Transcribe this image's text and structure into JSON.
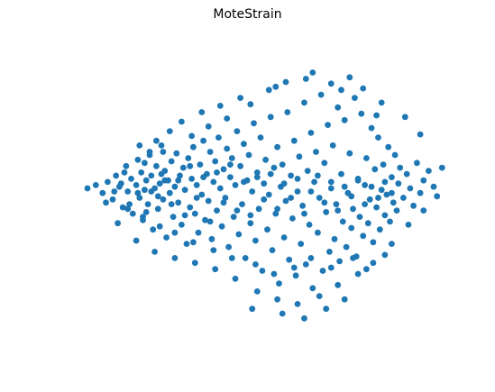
{
  "chart_data": {
    "type": "scatter",
    "title": "MoteStrain",
    "xlabel": "",
    "ylabel": "",
    "axes_visible": false,
    "grid": false,
    "legend": "none",
    "xlim": [
      -1.25,
      1.25
    ],
    "ylim": [
      -1.0,
      1.0
    ],
    "marker_color": "#1f77b4",
    "series": [
      {
        "points": [
          [
            -1.03,
            0.04
          ],
          [
            -0.98,
            0.06
          ],
          [
            -0.94,
            0.01
          ],
          [
            -0.91,
            0.08
          ],
          [
            -0.88,
            -0.03
          ],
          [
            -0.86,
            0.12
          ],
          [
            -0.84,
            0.05
          ],
          [
            -0.82,
            -0.08
          ],
          [
            -0.8,
            0.18
          ],
          [
            -0.79,
            0.02
          ],
          [
            -0.77,
            0.1
          ],
          [
            -0.76,
            -0.12
          ],
          [
            -0.74,
            0.06
          ],
          [
            -0.73,
            0.22
          ],
          [
            -0.72,
            -0.02
          ],
          [
            -0.71,
            0.14
          ],
          [
            -0.7,
            -0.16
          ],
          [
            -0.69,
            0.03
          ],
          [
            -0.68,
            0.09
          ],
          [
            -0.67,
            -0.06
          ],
          [
            -0.66,
            0.27
          ],
          [
            -0.65,
            0.12
          ],
          [
            -0.64,
            -0.22
          ],
          [
            -0.63,
            0.04
          ],
          [
            -0.62,
            0.18
          ],
          [
            -0.61,
            -0.09
          ],
          [
            -0.6,
            0.07
          ],
          [
            -0.59,
            0.31
          ],
          [
            -0.58,
            -0.03
          ],
          [
            -0.57,
            0.15
          ],
          [
            -0.56,
            -0.27
          ],
          [
            -0.55,
            0.09
          ],
          [
            -0.54,
            0.01
          ],
          [
            -0.53,
            0.21
          ],
          [
            -0.52,
            -0.14
          ],
          [
            -0.51,
            0.05
          ],
          [
            -0.5,
            0.26
          ],
          [
            -0.49,
            -0.05
          ],
          [
            -0.48,
            0.12
          ],
          [
            -0.47,
            -0.19
          ],
          [
            -0.46,
            0.17
          ],
          [
            -0.45,
            0.03
          ],
          [
            -0.44,
            -0.31
          ],
          [
            -0.43,
            0.23
          ],
          [
            -0.42,
            -0.08
          ],
          [
            -0.41,
            0.1
          ],
          [
            -0.4,
            0.3
          ],
          [
            -0.39,
            -0.12
          ],
          [
            -0.38,
            0.06
          ],
          [
            -0.37,
            -0.24
          ],
          [
            -0.36,
            0.19
          ],
          [
            -0.35,
            0.0
          ],
          [
            -0.34,
            0.34
          ],
          [
            -0.33,
            -0.16
          ],
          [
            -0.32,
            0.13
          ],
          [
            -0.31,
            -0.04
          ],
          [
            -0.3,
            0.27
          ],
          [
            -0.29,
            -0.28
          ],
          [
            -0.28,
            0.08
          ],
          [
            -0.27,
            0.21
          ],
          [
            -0.26,
            -0.1
          ],
          [
            -0.25,
            0.36
          ],
          [
            -0.24,
            0.04
          ],
          [
            -0.23,
            -0.2
          ],
          [
            -0.22,
            0.16
          ],
          [
            -0.21,
            -0.02
          ],
          [
            -0.2,
            0.29
          ],
          [
            -0.19,
            -0.33
          ],
          [
            -0.18,
            0.11
          ],
          [
            -0.17,
            0.23
          ],
          [
            -0.16,
            -0.14
          ],
          [
            -0.15,
            0.06
          ],
          [
            -0.14,
            0.4
          ],
          [
            -0.13,
            -0.25
          ],
          [
            -0.12,
            0.18
          ],
          [
            -0.11,
            -0.06
          ],
          [
            -0.1,
            0.32
          ],
          [
            -0.09,
            -0.4
          ],
          [
            -0.08,
            0.09
          ],
          [
            -0.07,
            0.25
          ],
          [
            -0.06,
            -0.18
          ],
          [
            -0.05,
            0.02
          ],
          [
            -0.04,
            0.45
          ],
          [
            -0.03,
            -0.29
          ],
          [
            -0.02,
            0.14
          ],
          [
            -0.01,
            -0.09
          ],
          [
            0.0,
            0.36
          ],
          [
            0.01,
            -0.48
          ],
          [
            0.02,
            0.07
          ],
          [
            0.03,
            0.22
          ],
          [
            0.04,
            -0.22
          ],
          [
            0.05,
            0.0
          ],
          [
            0.06,
            0.49
          ],
          [
            0.07,
            -0.35
          ],
          [
            0.08,
            0.17
          ],
          [
            0.09,
            -0.12
          ],
          [
            0.1,
            0.3
          ],
          [
            0.11,
            -0.56
          ],
          [
            0.12,
            0.05
          ],
          [
            0.13,
            0.19
          ],
          [
            0.14,
            -0.27
          ],
          [
            0.15,
            -0.04
          ],
          [
            0.16,
            0.52
          ],
          [
            0.17,
            -0.41
          ],
          [
            0.18,
            0.12
          ],
          [
            0.19,
            -0.15
          ],
          [
            0.2,
            0.34
          ],
          [
            0.21,
            -0.51
          ],
          [
            0.22,
            0.02
          ],
          [
            0.23,
            0.24
          ],
          [
            0.24,
            -0.31
          ],
          [
            0.25,
            -0.07
          ],
          [
            0.26,
            0.58
          ],
          [
            0.27,
            -0.44
          ],
          [
            0.28,
            0.15
          ],
          [
            0.29,
            -0.19
          ],
          [
            0.3,
            0.39
          ],
          [
            0.31,
            -0.59
          ],
          [
            0.32,
            0.08
          ],
          [
            0.33,
            0.27
          ],
          [
            0.34,
            -0.24
          ],
          [
            0.35,
            -0.02
          ],
          [
            0.36,
            0.63
          ],
          [
            0.37,
            -0.48
          ],
          [
            0.38,
            0.2
          ],
          [
            0.39,
            -0.11
          ],
          [
            0.4,
            0.44
          ],
          [
            0.41,
            -0.36
          ],
          [
            0.42,
            0.04
          ],
          [
            0.43,
            0.31
          ],
          [
            0.44,
            -0.28
          ],
          [
            0.45,
            -0.06
          ],
          [
            0.46,
            0.55
          ],
          [
            0.47,
            -0.42
          ],
          [
            0.48,
            0.13
          ],
          [
            0.49,
            -0.17
          ],
          [
            0.5,
            0.47
          ],
          [
            0.51,
            -0.33
          ],
          [
            0.52,
            0.01
          ],
          [
            0.53,
            0.26
          ],
          [
            0.54,
            -0.21
          ],
          [
            0.55,
            -0.09
          ],
          [
            0.56,
            0.61
          ],
          [
            0.57,
            -0.39
          ],
          [
            0.58,
            0.1
          ],
          [
            0.59,
            -0.14
          ],
          [
            0.6,
            0.51
          ],
          [
            0.61,
            -0.26
          ],
          [
            0.62,
            0.06
          ],
          [
            0.63,
            0.23
          ],
          [
            0.64,
            -0.18
          ],
          [
            0.65,
            -0.03
          ],
          [
            0.66,
            0.42
          ],
          [
            0.67,
            -0.3
          ],
          [
            0.68,
            0.16
          ],
          [
            0.69,
            -0.08
          ],
          [
            0.7,
            0.36
          ],
          [
            0.71,
            -0.22
          ],
          [
            0.72,
            0.03
          ],
          [
            0.73,
            0.19
          ],
          [
            0.74,
            -0.13
          ],
          [
            0.75,
            0.0
          ],
          [
            0.76,
            0.3
          ],
          [
            0.77,
            -0.17
          ],
          [
            0.78,
            0.11
          ],
          [
            0.79,
            -0.05
          ],
          [
            0.8,
            0.25
          ],
          [
            0.81,
            -0.1
          ],
          [
            0.82,
            0.07
          ],
          [
            0.83,
            0.17
          ],
          [
            0.85,
            -0.02
          ],
          [
            0.87,
            0.13
          ],
          [
            0.89,
            0.04
          ],
          [
            0.91,
            -0.07
          ],
          [
            0.93,
            0.2
          ],
          [
            0.95,
            0.01
          ],
          [
            0.97,
            0.09
          ],
          [
            1.0,
            0.15
          ],
          [
            1.03,
            0.05
          ],
          [
            1.08,
            0.17
          ],
          [
            -0.62,
            0.34
          ],
          [
            -0.54,
            0.4
          ],
          [
            -0.47,
            0.46
          ],
          [
            -0.35,
            0.52
          ],
          [
            -0.24,
            0.56
          ],
          [
            -0.12,
            0.61
          ],
          [
            0.05,
            0.66
          ],
          [
            0.15,
            0.71
          ],
          [
            0.31,
            0.77
          ],
          [
            0.42,
            0.7
          ],
          [
            0.53,
            0.74
          ],
          [
            0.61,
            0.67
          ],
          [
            0.72,
            0.58
          ],
          [
            0.86,
            0.49
          ],
          [
            0.95,
            0.38
          ],
          [
            0.69,
            0.5
          ],
          [
            0.48,
            0.66
          ],
          [
            0.27,
            0.73
          ],
          [
            0.09,
            0.68
          ],
          [
            -0.06,
            0.57
          ],
          [
            -0.2,
            0.48
          ],
          [
            -0.31,
            0.43
          ],
          [
            -0.41,
            0.37
          ],
          [
            -0.58,
            0.27
          ],
          [
            -0.69,
            0.2
          ],
          [
            -0.81,
            0.14
          ],
          [
            -0.92,
            -0.05
          ],
          [
            -0.85,
            -0.18
          ],
          [
            -0.74,
            -0.29
          ],
          [
            -0.63,
            -0.36
          ],
          [
            -0.51,
            -0.4
          ],
          [
            -0.39,
            -0.43
          ],
          [
            -0.27,
            -0.47
          ],
          [
            -0.15,
            -0.53
          ],
          [
            -0.02,
            -0.61
          ],
          [
            0.1,
            -0.66
          ],
          [
            0.22,
            -0.69
          ],
          [
            0.35,
            -0.64
          ],
          [
            0.46,
            -0.57
          ],
          [
            0.58,
            -0.5
          ],
          [
            0.67,
            -0.43
          ],
          [
            0.78,
            -0.31
          ],
          [
            0.88,
            -0.19
          ],
          [
            0.97,
            -0.1
          ],
          [
            1.05,
            -0.01
          ],
          [
            -0.05,
            -0.72
          ],
          [
            0.13,
            -0.75
          ],
          [
            0.26,
            -0.78
          ],
          [
            0.39,
            -0.72
          ],
          [
            0.5,
            -0.66
          ],
          [
            -0.72,
            0.31
          ],
          [
            -0.66,
            0.25
          ],
          [
            -0.57,
            0.09
          ],
          [
            -0.61,
            -0.01
          ],
          [
            -0.68,
            -0.11
          ],
          [
            -0.73,
            0.01
          ],
          [
            -0.78,
            -0.06
          ],
          [
            -0.83,
            0.07
          ],
          [
            -0.87,
            0.02
          ],
          [
            -0.65,
            0.02
          ],
          [
            -0.59,
            0.13
          ],
          [
            -0.53,
            -0.06
          ],
          [
            -0.49,
            0.09
          ],
          [
            -0.45,
            -0.13
          ],
          [
            -0.42,
            0.18
          ],
          [
            -0.38,
            -0.02
          ],
          [
            -0.34,
            0.11
          ],
          [
            -0.3,
            -0.17
          ],
          [
            -0.26,
            0.14
          ],
          [
            -0.22,
            -0.05
          ],
          [
            -0.18,
            0.19
          ],
          [
            -0.14,
            -0.1
          ],
          [
            -0.1,
            0.08
          ],
          [
            -0.06,
            -0.13
          ],
          [
            -0.02,
            0.11
          ],
          [
            0.02,
            -0.03
          ],
          [
            0.06,
            0.13
          ],
          [
            0.1,
            -0.09
          ],
          [
            0.14,
            0.07
          ],
          [
            0.18,
            -0.02
          ],
          [
            0.22,
            0.1
          ],
          [
            0.26,
            -0.12
          ],
          [
            0.3,
            0.02
          ],
          [
            0.34,
            0.12
          ],
          [
            0.38,
            -0.05
          ],
          [
            0.42,
            0.08
          ],
          [
            0.46,
            -0.1
          ],
          [
            0.5,
            0.05
          ],
          [
            0.54,
            -0.01
          ],
          [
            0.58,
            0.09
          ],
          [
            0.62,
            -0.06
          ],
          [
            0.66,
            0.05
          ],
          [
            0.7,
            -0.02
          ],
          [
            0.74,
            0.08
          ],
          [
            0.78,
            0.01
          ],
          [
            0.3,
            -0.4
          ],
          [
            0.42,
            -0.46
          ],
          [
            0.55,
            -0.4
          ],
          [
            0.63,
            -0.47
          ],
          [
            0.74,
            -0.38
          ],
          [
            0.2,
            -0.46
          ],
          [
            0.08,
            -0.5
          ],
          [
            -0.03,
            -0.44
          ],
          [
            -0.17,
            -0.4
          ],
          [
            -0.28,
            -0.35
          ],
          [
            -0.4,
            -0.3
          ],
          [
            -0.51,
            -0.24
          ],
          [
            -0.6,
            -0.2
          ],
          [
            -0.7,
            -0.14
          ],
          [
            -0.79,
            -0.09
          ]
        ]
      }
    ]
  }
}
